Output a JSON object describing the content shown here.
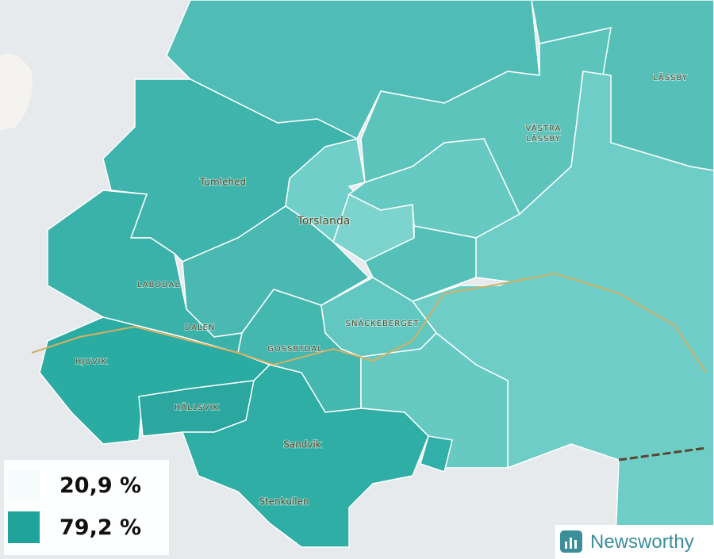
{
  "map": {
    "places": [
      "Lässby",
      "Västra Lässby",
      "Tumlehed",
      "Torslanda",
      "Labodal",
      "Dalen",
      "Snäckeberget",
      "Gossbydal",
      "Hjuvik",
      "Hällsvik",
      "Sandvik",
      "Stenkullen"
    ],
    "legend": {
      "items": [
        {
          "label": "20,9 %"
        },
        {
          "label": "79,2 %"
        }
      ]
    },
    "brand": "Newsworthy"
  }
}
